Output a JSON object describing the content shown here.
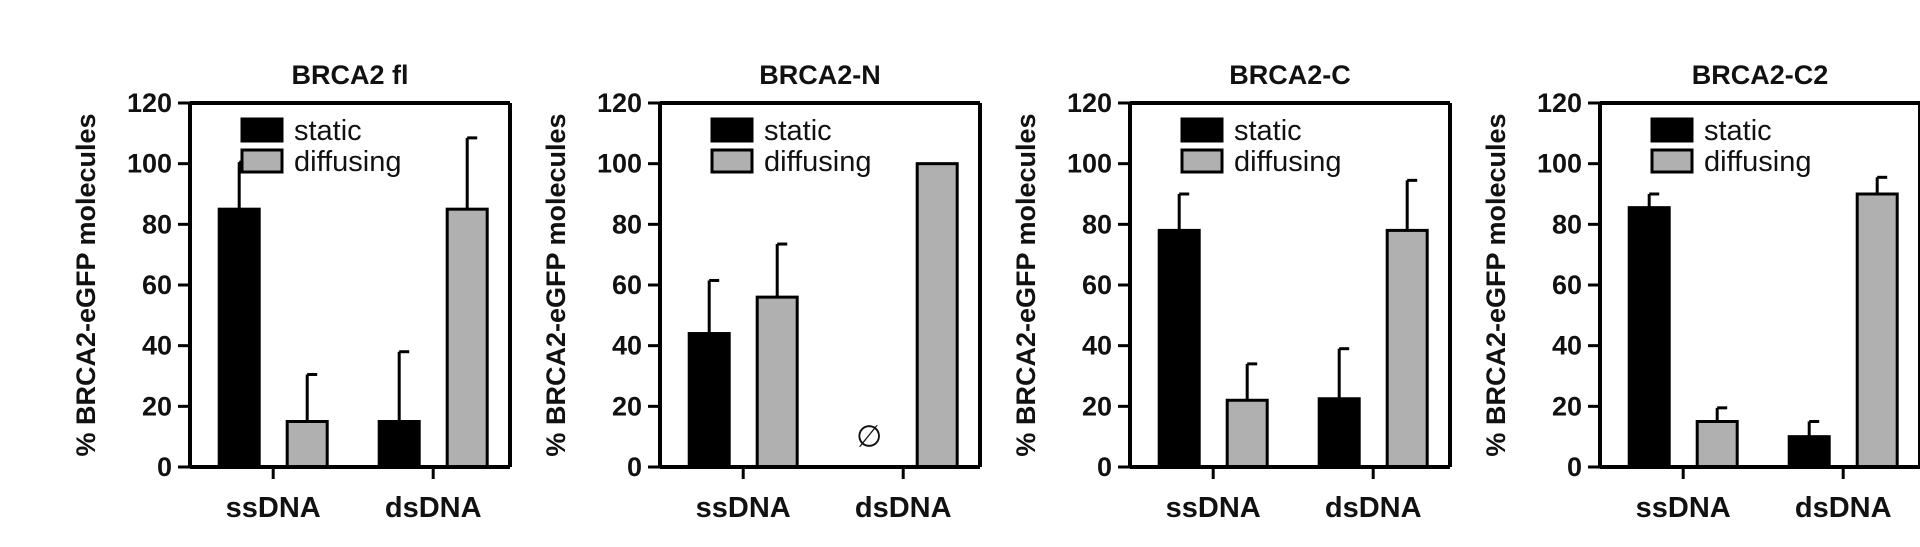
{
  "colors": {
    "static": "#000000",
    "diffusing": "#b0b0b0",
    "axis": "#000000"
  },
  "chart_data": [
    {
      "type": "bar",
      "title": "BRCA2 fl",
      "ylabel": "% BRCA2-eGFP molecules",
      "xlabel": "",
      "ylim": [
        0,
        120
      ],
      "yticks": [
        0,
        20,
        40,
        60,
        80,
        100,
        120
      ],
      "categories": [
        "ssDNA",
        "dsDNA"
      ],
      "legend": {
        "position": "top-left",
        "entries": [
          "static",
          "diffusing"
        ]
      },
      "series": [
        {
          "name": "static",
          "values": [
            85,
            15
          ],
          "errors": [
            15.5,
            23
          ]
        },
        {
          "name": "diffusing",
          "values": [
            15,
            85
          ],
          "errors": [
            15.5,
            23.5
          ]
        }
      ],
      "annotations": []
    },
    {
      "type": "bar",
      "title": "BRCA2-N",
      "ylabel": "% BRCA2-eGFP molecules",
      "xlabel": "",
      "ylim": [
        0,
        120
      ],
      "yticks": [
        0,
        20,
        40,
        60,
        80,
        100,
        120
      ],
      "categories": [
        "ssDNA",
        "dsDNA"
      ],
      "legend": {
        "position": "top-left",
        "entries": [
          "static",
          "diffusing"
        ]
      },
      "series": [
        {
          "name": "static",
          "values": [
            44,
            null
          ],
          "errors": [
            17.5,
            null
          ]
        },
        {
          "name": "diffusing",
          "values": [
            56,
            100
          ],
          "errors": [
            17.5,
            0
          ]
        }
      ],
      "annotations": [
        {
          "text": "∅",
          "category": "dsDNA",
          "series": "static",
          "y": 10
        }
      ]
    },
    {
      "type": "bar",
      "title": "BRCA2-C",
      "ylabel": "% BRCA2-eGFP molecules",
      "xlabel": "",
      "ylim": [
        0,
        120
      ],
      "yticks": [
        0,
        20,
        40,
        60,
        80,
        100,
        120
      ],
      "categories": [
        "ssDNA",
        "dsDNA"
      ],
      "legend": {
        "position": "top-left",
        "entries": [
          "static",
          "diffusing"
        ]
      },
      "series": [
        {
          "name": "static",
          "values": [
            78,
            22.5
          ],
          "errors": [
            12,
            16.5
          ]
        },
        {
          "name": "diffusing",
          "values": [
            22,
            78
          ],
          "errors": [
            12,
            16.5
          ]
        }
      ],
      "annotations": []
    },
    {
      "type": "bar",
      "title": "BRCA2-C2",
      "ylabel": "% BRCA2-eGFP molecules",
      "xlabel": "",
      "ylim": [
        0,
        120
      ],
      "yticks": [
        0,
        20,
        40,
        60,
        80,
        100,
        120
      ],
      "categories": [
        "ssDNA",
        "dsDNA"
      ],
      "legend": {
        "position": "top-left",
        "entries": [
          "static",
          "diffusing"
        ]
      },
      "series": [
        {
          "name": "static",
          "values": [
            85.5,
            10
          ],
          "errors": [
            4.5,
            5
          ]
        },
        {
          "name": "diffusing",
          "values": [
            15,
            90
          ],
          "errors": [
            4.5,
            5.5
          ]
        }
      ],
      "annotations": []
    }
  ]
}
